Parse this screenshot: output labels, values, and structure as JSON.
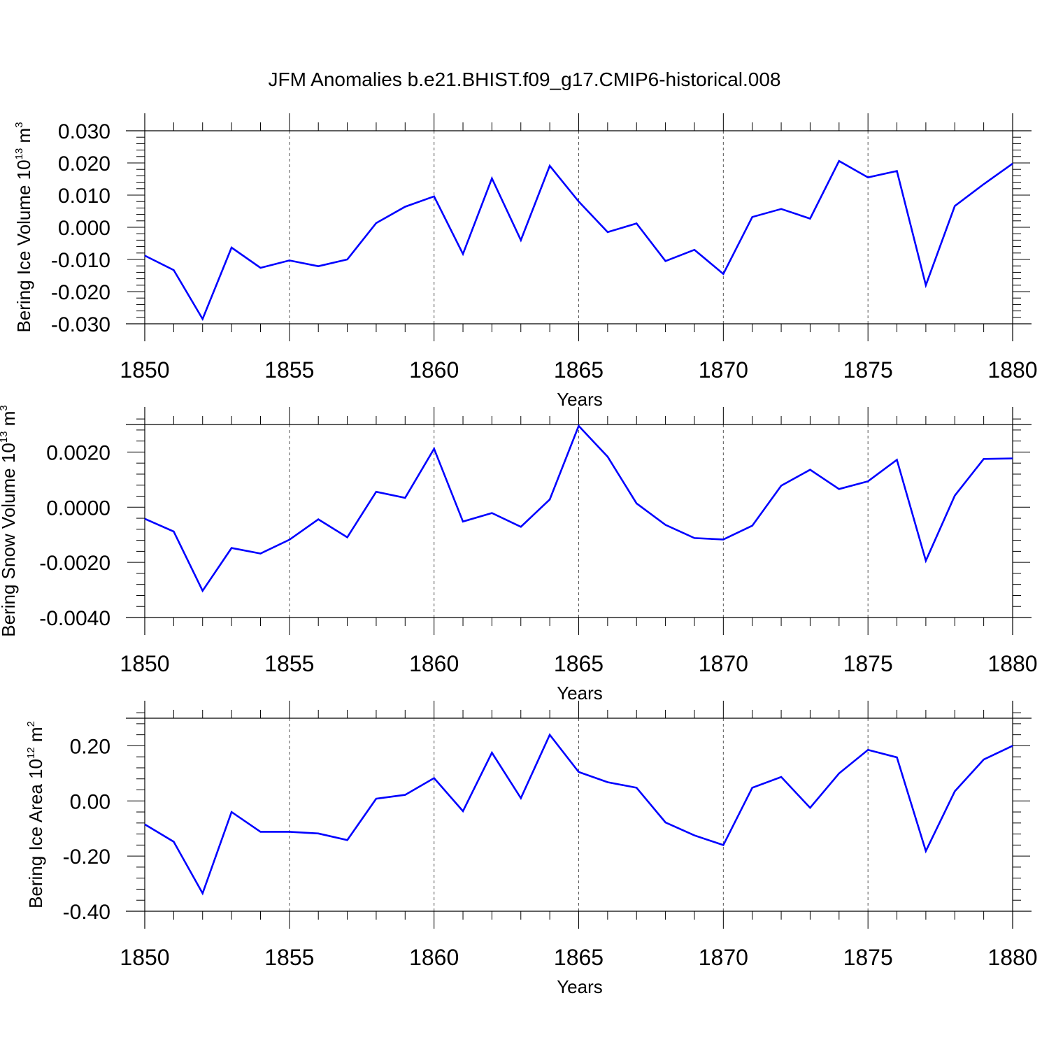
{
  "title": "JFM Anomalies b.e21.BHIST.f09_g17.CMIP6-historical.008",
  "colors": {
    "line": "#0000ff",
    "axis": "#000000",
    "grid": "#555555"
  },
  "chart_data": [
    {
      "type": "line",
      "ylabel": "Bering Ice Volume 10",
      "ylabel_sup": "13",
      "ylabel_unit": "m",
      "ylabel_unit_sup": "3",
      "xlabel": "Years",
      "xlim": [
        1850,
        1880
      ],
      "ylim": [
        -0.03,
        0.03
      ],
      "xticks": [
        1850,
        1855,
        1860,
        1865,
        1870,
        1875,
        1880
      ],
      "xtick_labels": [
        "1850",
        "1855",
        "1860",
        "1865",
        "1870",
        "1875",
        "1880"
      ],
      "yticks": [
        -0.03,
        -0.02,
        -0.01,
        0.0,
        0.01,
        0.02,
        0.03
      ],
      "ytick_labels": [
        "-0.030",
        "-0.020",
        "-0.010",
        "0.000",
        "0.010",
        "0.020",
        "0.030"
      ],
      "x": [
        1850,
        1851,
        1852,
        1853,
        1854,
        1855,
        1856,
        1857,
        1858,
        1859,
        1860,
        1861,
        1862,
        1863,
        1864,
        1865,
        1866,
        1867,
        1868,
        1869,
        1870,
        1871,
        1872,
        1873,
        1874,
        1875,
        1876,
        1877,
        1878,
        1879,
        1880
      ],
      "values": [
        -0.0088,
        -0.0133,
        -0.0285,
        -0.0063,
        -0.0126,
        -0.0103,
        -0.0121,
        -0.01,
        0.0013,
        0.0064,
        0.0096,
        -0.0083,
        0.0152,
        -0.004,
        0.0191,
        0.008,
        -0.0015,
        0.0012,
        -0.0105,
        -0.007,
        -0.0145,
        0.0032,
        0.0057,
        0.0027,
        0.0206,
        0.0155,
        0.0175,
        -0.018,
        0.0066,
        0.0134,
        0.0198
      ]
    },
    {
      "type": "line",
      "ylabel": "Bering Snow Volume 10",
      "ylabel_sup": "13",
      "ylabel_unit": "m",
      "ylabel_unit_sup": "3",
      "xlabel": "Years",
      "xlim": [
        1850,
        1880
      ],
      "ylim": [
        -0.004,
        0.003
      ],
      "xticks": [
        1850,
        1855,
        1860,
        1865,
        1870,
        1875,
        1880
      ],
      "xtick_labels": [
        "1850",
        "1855",
        "1860",
        "1865",
        "1870",
        "1875",
        "1880"
      ],
      "yticks": [
        -0.004,
        -0.002,
        0.0,
        0.002
      ],
      "ytick_labels": [
        "-0.0040",
        "-0.0020",
        "0.0000",
        "0.0020"
      ],
      "x": [
        1850,
        1851,
        1852,
        1853,
        1854,
        1855,
        1856,
        1857,
        1858,
        1859,
        1860,
        1861,
        1862,
        1863,
        1864,
        1865,
        1866,
        1867,
        1868,
        1869,
        1870,
        1871,
        1872,
        1873,
        1874,
        1875,
        1876,
        1877,
        1878,
        1879,
        1880
      ],
      "values": [
        -0.00042,
        -0.00088,
        -0.00303,
        -0.00148,
        -0.00168,
        -0.00118,
        -0.00044,
        -0.00109,
        0.00056,
        0.00034,
        0.00212,
        -0.00052,
        -0.00021,
        -0.00071,
        0.00028,
        0.00295,
        0.00183,
        0.00014,
        -0.00064,
        -0.00112,
        -0.00117,
        -0.00067,
        0.00078,
        0.00136,
        0.00066,
        0.00094,
        0.00172,
        -0.00194,
        0.00042,
        0.00175,
        0.00177
      ]
    },
    {
      "type": "line",
      "ylabel": "Bering Ice Area 10",
      "ylabel_sup": "12",
      "ylabel_unit": "m",
      "ylabel_unit_sup": "2",
      "xlabel": "Years",
      "xlim": [
        1850,
        1880
      ],
      "ylim": [
        -0.4,
        0.3
      ],
      "xticks": [
        1850,
        1855,
        1860,
        1865,
        1870,
        1875,
        1880
      ],
      "xtick_labels": [
        "1850",
        "1855",
        "1860",
        "1865",
        "1870",
        "1875",
        "1880"
      ],
      "yticks": [
        -0.4,
        -0.2,
        0.0,
        0.2
      ],
      "ytick_labels": [
        "-0.40",
        "-0.20",
        "0.00",
        "0.20"
      ],
      "x": [
        1850,
        1851,
        1852,
        1853,
        1854,
        1855,
        1856,
        1857,
        1858,
        1859,
        1860,
        1861,
        1862,
        1863,
        1864,
        1865,
        1866,
        1867,
        1868,
        1869,
        1870,
        1871,
        1872,
        1873,
        1874,
        1875,
        1876,
        1877,
        1878,
        1879,
        1880
      ],
      "values": [
        -0.085,
        -0.148,
        -0.335,
        -0.04,
        -0.112,
        -0.112,
        -0.118,
        -0.142,
        0.008,
        0.022,
        0.083,
        -0.037,
        0.175,
        0.01,
        0.24,
        0.105,
        0.068,
        0.048,
        -0.078,
        -0.125,
        -0.16,
        0.048,
        0.087,
        -0.025,
        0.1,
        0.185,
        0.158,
        -0.182,
        0.035,
        0.15,
        0.2
      ]
    }
  ]
}
